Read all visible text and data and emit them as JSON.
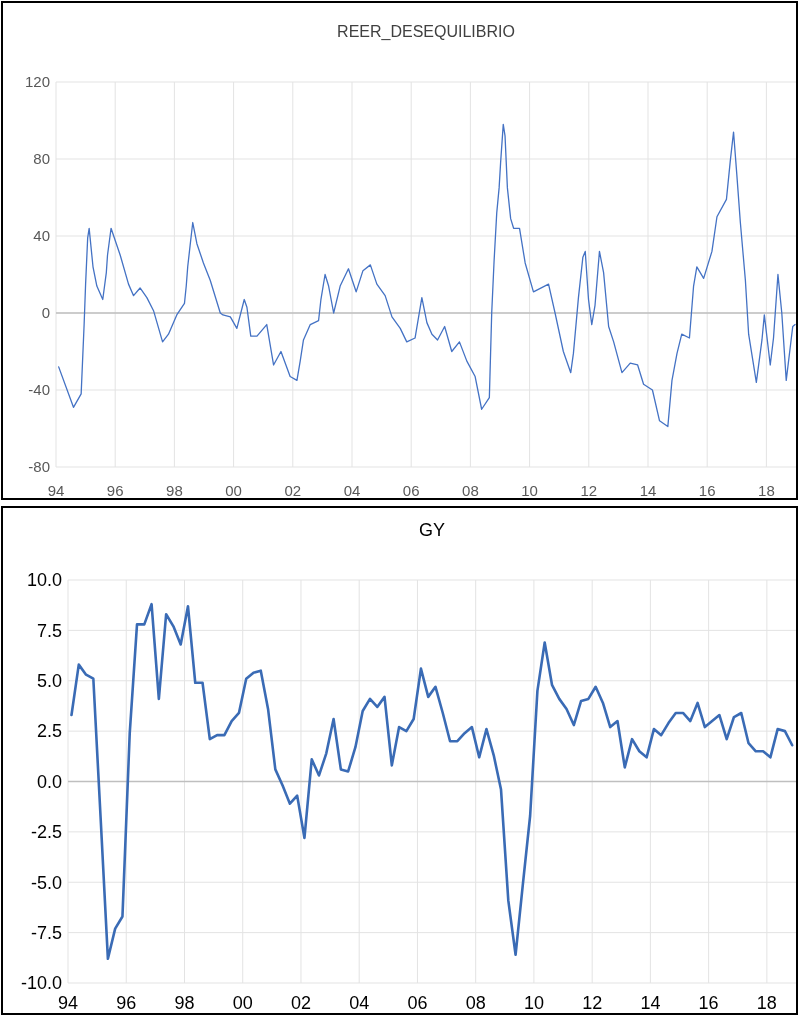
{
  "chart_data": [
    {
      "type": "line",
      "title": "REER_DESEQUILIBRIO",
      "xlim": [
        1994,
        2019
      ],
      "xticks": [
        {
          "value": 1994,
          "label": "94"
        },
        {
          "value": 1996,
          "label": "96"
        },
        {
          "value": 1998,
          "label": "98"
        },
        {
          "value": 2000,
          "label": "00"
        },
        {
          "value": 2002,
          "label": "02"
        },
        {
          "value": 2004,
          "label": "04"
        },
        {
          "value": 2006,
          "label": "06"
        },
        {
          "value": 2008,
          "label": "08"
        },
        {
          "value": 2010,
          "label": "10"
        },
        {
          "value": 2012,
          "label": "12"
        },
        {
          "value": 2014,
          "label": "14"
        },
        {
          "value": 2016,
          "label": "16"
        },
        {
          "value": 2018,
          "label": "18"
        }
      ],
      "ylim": [
        -80,
        120
      ],
      "yticks": [
        -80,
        -40,
        0,
        40,
        80,
        120
      ],
      "grid": true,
      "series": [
        {
          "color": "#4472c4",
          "x": [
            1994.09,
            1994.59,
            1994.85,
            1994.95,
            1995.0,
            1995.07,
            1995.12,
            1995.25,
            1995.38,
            1995.58,
            1995.7,
            1995.74,
            1995.86,
            1996.17,
            1996.45,
            1996.62,
            1996.84,
            1997.07,
            1997.3,
            1997.6,
            1997.8,
            1998.08,
            1998.34,
            1998.4,
            1998.45,
            1998.53,
            1998.62,
            1998.76,
            1998.98,
            1999.21,
            1999.55,
            1999.64,
            1999.89,
            2000.11,
            2000.36,
            2000.45,
            2000.58,
            2000.79,
            2001.12,
            2001.35,
            2001.6,
            2001.91,
            2002.14,
            2002.25,
            2002.36,
            2002.59,
            2002.87,
            2002.95,
            2003.09,
            2003.21,
            2003.38,
            2003.6,
            2003.88,
            2004.14,
            2004.37,
            2004.62,
            2004.84,
            2005.12,
            2005.35,
            2005.63,
            2005.85,
            2006.13,
            2006.36,
            2006.53,
            2006.7,
            2006.89,
            2007.13,
            2007.37,
            2007.63,
            2007.88,
            2008.16,
            2008.38,
            2008.64,
            2008.72,
            2008.8,
            2008.89,
            2008.97,
            2009.02,
            2009.11,
            2009.17,
            2009.25,
            2009.36,
            2009.46,
            2009.66,
            2009.85,
            2010.13,
            2010.64,
            2010.86,
            2011.14,
            2011.39,
            2011.48,
            2011.65,
            2011.8,
            2011.88,
            2011.99,
            2012.1,
            2012.21,
            2012.36,
            2012.5,
            2012.67,
            2012.84,
            2013.12,
            2013.4,
            2013.65,
            2013.85,
            2014.15,
            2014.39,
            2014.67,
            2014.81,
            2014.98,
            2015.14,
            2015.4,
            2015.54,
            2015.65,
            2015.88,
            2016.16,
            2016.33,
            2016.65,
            2016.78,
            2016.89,
            2017.0,
            2017.12,
            2017.29,
            2017.4,
            2017.66,
            2017.85,
            2017.93,
            2018.13,
            2018.24,
            2018.39,
            2018.52,
            2018.67,
            2018.89,
            2018.97
          ],
          "values": [
            -28,
            -49,
            -42,
            -6,
            15,
            39,
            44,
            24,
            14,
            7,
            21,
            30,
            44,
            30,
            15,
            9,
            13,
            8,
            1,
            -15,
            -11,
            -1,
            5,
            14,
            24,
            35,
            47,
            36,
            26,
            17,
            0,
            -1,
            -2,
            -8,
            7,
            3,
            -12,
            -12,
            -6,
            -27,
            -20,
            -33,
            -35,
            -25,
            -14,
            -6,
            -4,
            7,
            20,
            14,
            0,
            14,
            23,
            11,
            22,
            25,
            15,
            9,
            -2,
            -8,
            -15,
            -13,
            8,
            -5,
            -11,
            -14,
            -7,
            -20,
            -15,
            -25,
            -33,
            -50,
            -44,
            0,
            27,
            52,
            65,
            78,
            98,
            92,
            65,
            49,
            44,
            44,
            26,
            11,
            15,
            0,
            -20,
            -31,
            -21,
            8,
            29,
            32,
            7,
            -6,
            4,
            32,
            21,
            -7,
            -15,
            -31,
            -26,
            -27,
            -37,
            -40,
            -56,
            -59,
            -35,
            -21,
            -11,
            -13,
            14,
            24,
            18,
            32,
            50,
            59,
            79,
            94,
            72,
            47,
            17,
            -11,
            -36,
            -14,
            -1,
            -27,
            -13,
            20,
            0,
            -35,
            -7,
            -6
          ]
        }
      ]
    },
    {
      "type": "line",
      "title": "GY",
      "xlim": [
        1994,
        2019
      ],
      "xticks": [
        {
          "value": 1994,
          "label": "94"
        },
        {
          "value": 1996,
          "label": "96"
        },
        {
          "value": 1998,
          "label": "98"
        },
        {
          "value": 2000,
          "label": "00"
        },
        {
          "value": 2002,
          "label": "02"
        },
        {
          "value": 2004,
          "label": "04"
        },
        {
          "value": 2006,
          "label": "06"
        },
        {
          "value": 2008,
          "label": "08"
        },
        {
          "value": 2010,
          "label": "10"
        },
        {
          "value": 2012,
          "label": "12"
        },
        {
          "value": 2014,
          "label": "14"
        },
        {
          "value": 2016,
          "label": "16"
        },
        {
          "value": 2018,
          "label": "18"
        }
      ],
      "ylim": [
        -10,
        10
      ],
      "yticks": [
        {
          "value": -10,
          "label": "-10.0"
        },
        {
          "value": -7.5,
          "label": "-7.5"
        },
        {
          "value": -5,
          "label": "-5.0"
        },
        {
          "value": -2.5,
          "label": "-2.5"
        },
        {
          "value": 0,
          "label": "0.0"
        },
        {
          "value": 2.5,
          "label": "2.5"
        },
        {
          "value": 5,
          "label": "5.0"
        },
        {
          "value": 7.5,
          "label": "7.5"
        },
        {
          "value": 10,
          "label": "10.0"
        }
      ],
      "grid": true,
      "series": [
        {
          "color": "#3a6bb5",
          "x": [
            1994.12,
            1994.37,
            1994.62,
            1994.87,
            1995.12,
            1995.37,
            1995.62,
            1995.87,
            1996.12,
            1996.37,
            1996.62,
            1996.87,
            1997.12,
            1997.37,
            1997.62,
            1997.87,
            1998.12,
            1998.37,
            1998.62,
            1998.87,
            1999.12,
            1999.37,
            1999.62,
            1999.87,
            2000.12,
            2000.37,
            2000.62,
            2000.87,
            2001.12,
            2001.37,
            2001.62,
            2001.87,
            2002.12,
            2002.37,
            2002.62,
            2002.87,
            2003.12,
            2003.37,
            2003.62,
            2003.87,
            2004.12,
            2004.37,
            2004.62,
            2004.87,
            2005.12,
            2005.37,
            2005.62,
            2005.87,
            2006.12,
            2006.37,
            2006.62,
            2006.87,
            2007.12,
            2007.37,
            2007.62,
            2007.87,
            2008.12,
            2008.37,
            2008.62,
            2008.87,
            2009.12,
            2009.37,
            2009.62,
            2009.87,
            2010.12,
            2010.37,
            2010.62,
            2010.87,
            2011.12,
            2011.37,
            2011.62,
            2011.87,
            2012.12,
            2012.37,
            2012.62,
            2012.87,
            2013.12,
            2013.37,
            2013.62,
            2013.87,
            2014.12,
            2014.37,
            2014.62,
            2014.87,
            2015.12,
            2015.37,
            2015.62,
            2015.87,
            2016.12,
            2016.37,
            2016.62,
            2016.87,
            2017.12,
            2017.37,
            2017.62,
            2017.87,
            2018.12,
            2018.37,
            2018.62,
            2018.87
          ],
          "values": [
            3.3,
            5.8,
            5.3,
            5.1,
            -1.8,
            -8.8,
            -7.3,
            -6.7,
            2.4,
            7.8,
            7.8,
            8.8,
            4.1,
            8.3,
            7.7,
            6.8,
            8.7,
            4.9,
            4.9,
            2.1,
            2.3,
            2.3,
            3.0,
            3.4,
            5.1,
            5.4,
            5.5,
            3.6,
            0.6,
            -0.2,
            -1.1,
            -0.7,
            -2.8,
            1.1,
            0.3,
            1.4,
            3.1,
            0.6,
            0.5,
            1.7,
            3.5,
            4.1,
            3.7,
            4.2,
            0.8,
            2.7,
            2.5,
            3.1,
            5.6,
            4.2,
            4.7,
            3.4,
            2.0,
            2.0,
            2.4,
            2.7,
            1.2,
            2.6,
            1.3,
            -0.4,
            -5.9,
            -8.6,
            -5.1,
            -1.7,
            4.5,
            6.9,
            4.8,
            4.1,
            3.6,
            2.8,
            4.0,
            4.1,
            4.7,
            3.9,
            2.7,
            3.0,
            0.7,
            2.1,
            1.5,
            1.2,
            2.6,
            2.3,
            2.9,
            3.4,
            3.4,
            3.0,
            3.9,
            2.7,
            3.0,
            3.3,
            2.1,
            3.2,
            3.4,
            1.9,
            1.5,
            1.5,
            1.2,
            2.6,
            2.5,
            1.8
          ]
        }
      ]
    }
  ]
}
